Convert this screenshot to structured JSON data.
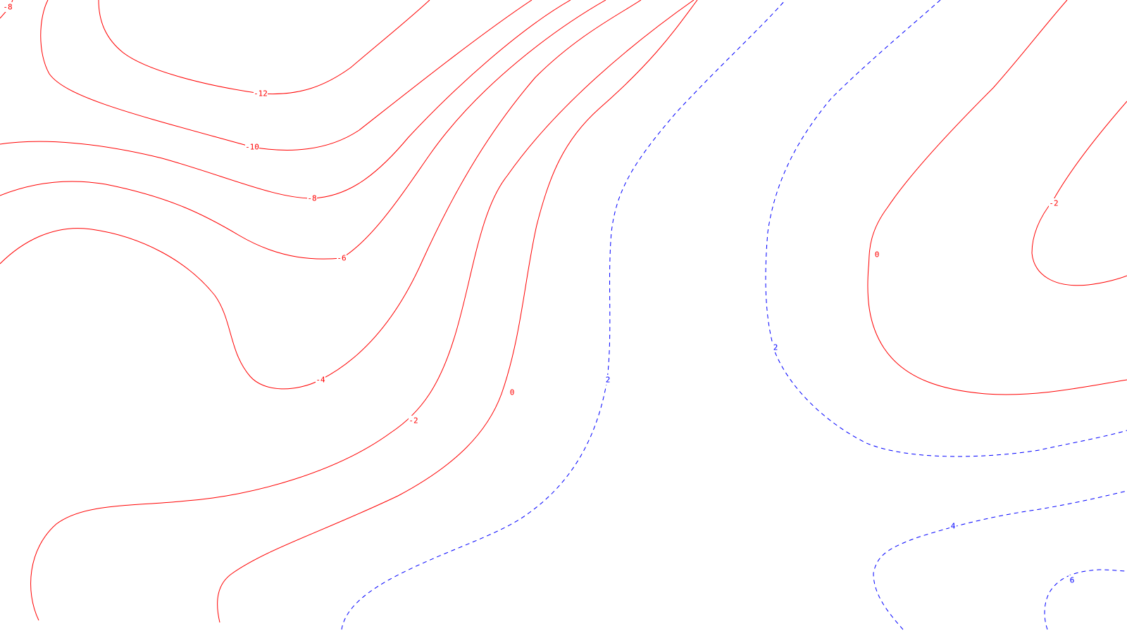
{
  "chart_data": {
    "type": "contour",
    "title": "",
    "xlabel": "",
    "ylabel": "",
    "grid": false,
    "legend": "none",
    "colors": {
      "positive": "#0000ff",
      "nonpositive": "#ff0000",
      "background": "#ffffff"
    },
    "line_styles": {
      "positive": "dashed",
      "nonpositive": "solid"
    },
    "contours": [
      {
        "level": -8,
        "label": "-8",
        "count": 2
      },
      {
        "level": -12,
        "label": "-12",
        "count": 1
      },
      {
        "level": -10,
        "label": "-10",
        "count": 1
      },
      {
        "level": -6,
        "label": "-6",
        "count": 1
      },
      {
        "level": -4,
        "label": "-4",
        "count": 1
      },
      {
        "level": -2,
        "label": "-2",
        "count": 2
      },
      {
        "level": 0,
        "label": "0",
        "count": 2
      },
      {
        "level": 2,
        "label": "2",
        "count": 2
      },
      {
        "level": 4,
        "label": "4",
        "count": 1
      },
      {
        "level": 6,
        "label": "6",
        "count": 1
      }
    ]
  }
}
